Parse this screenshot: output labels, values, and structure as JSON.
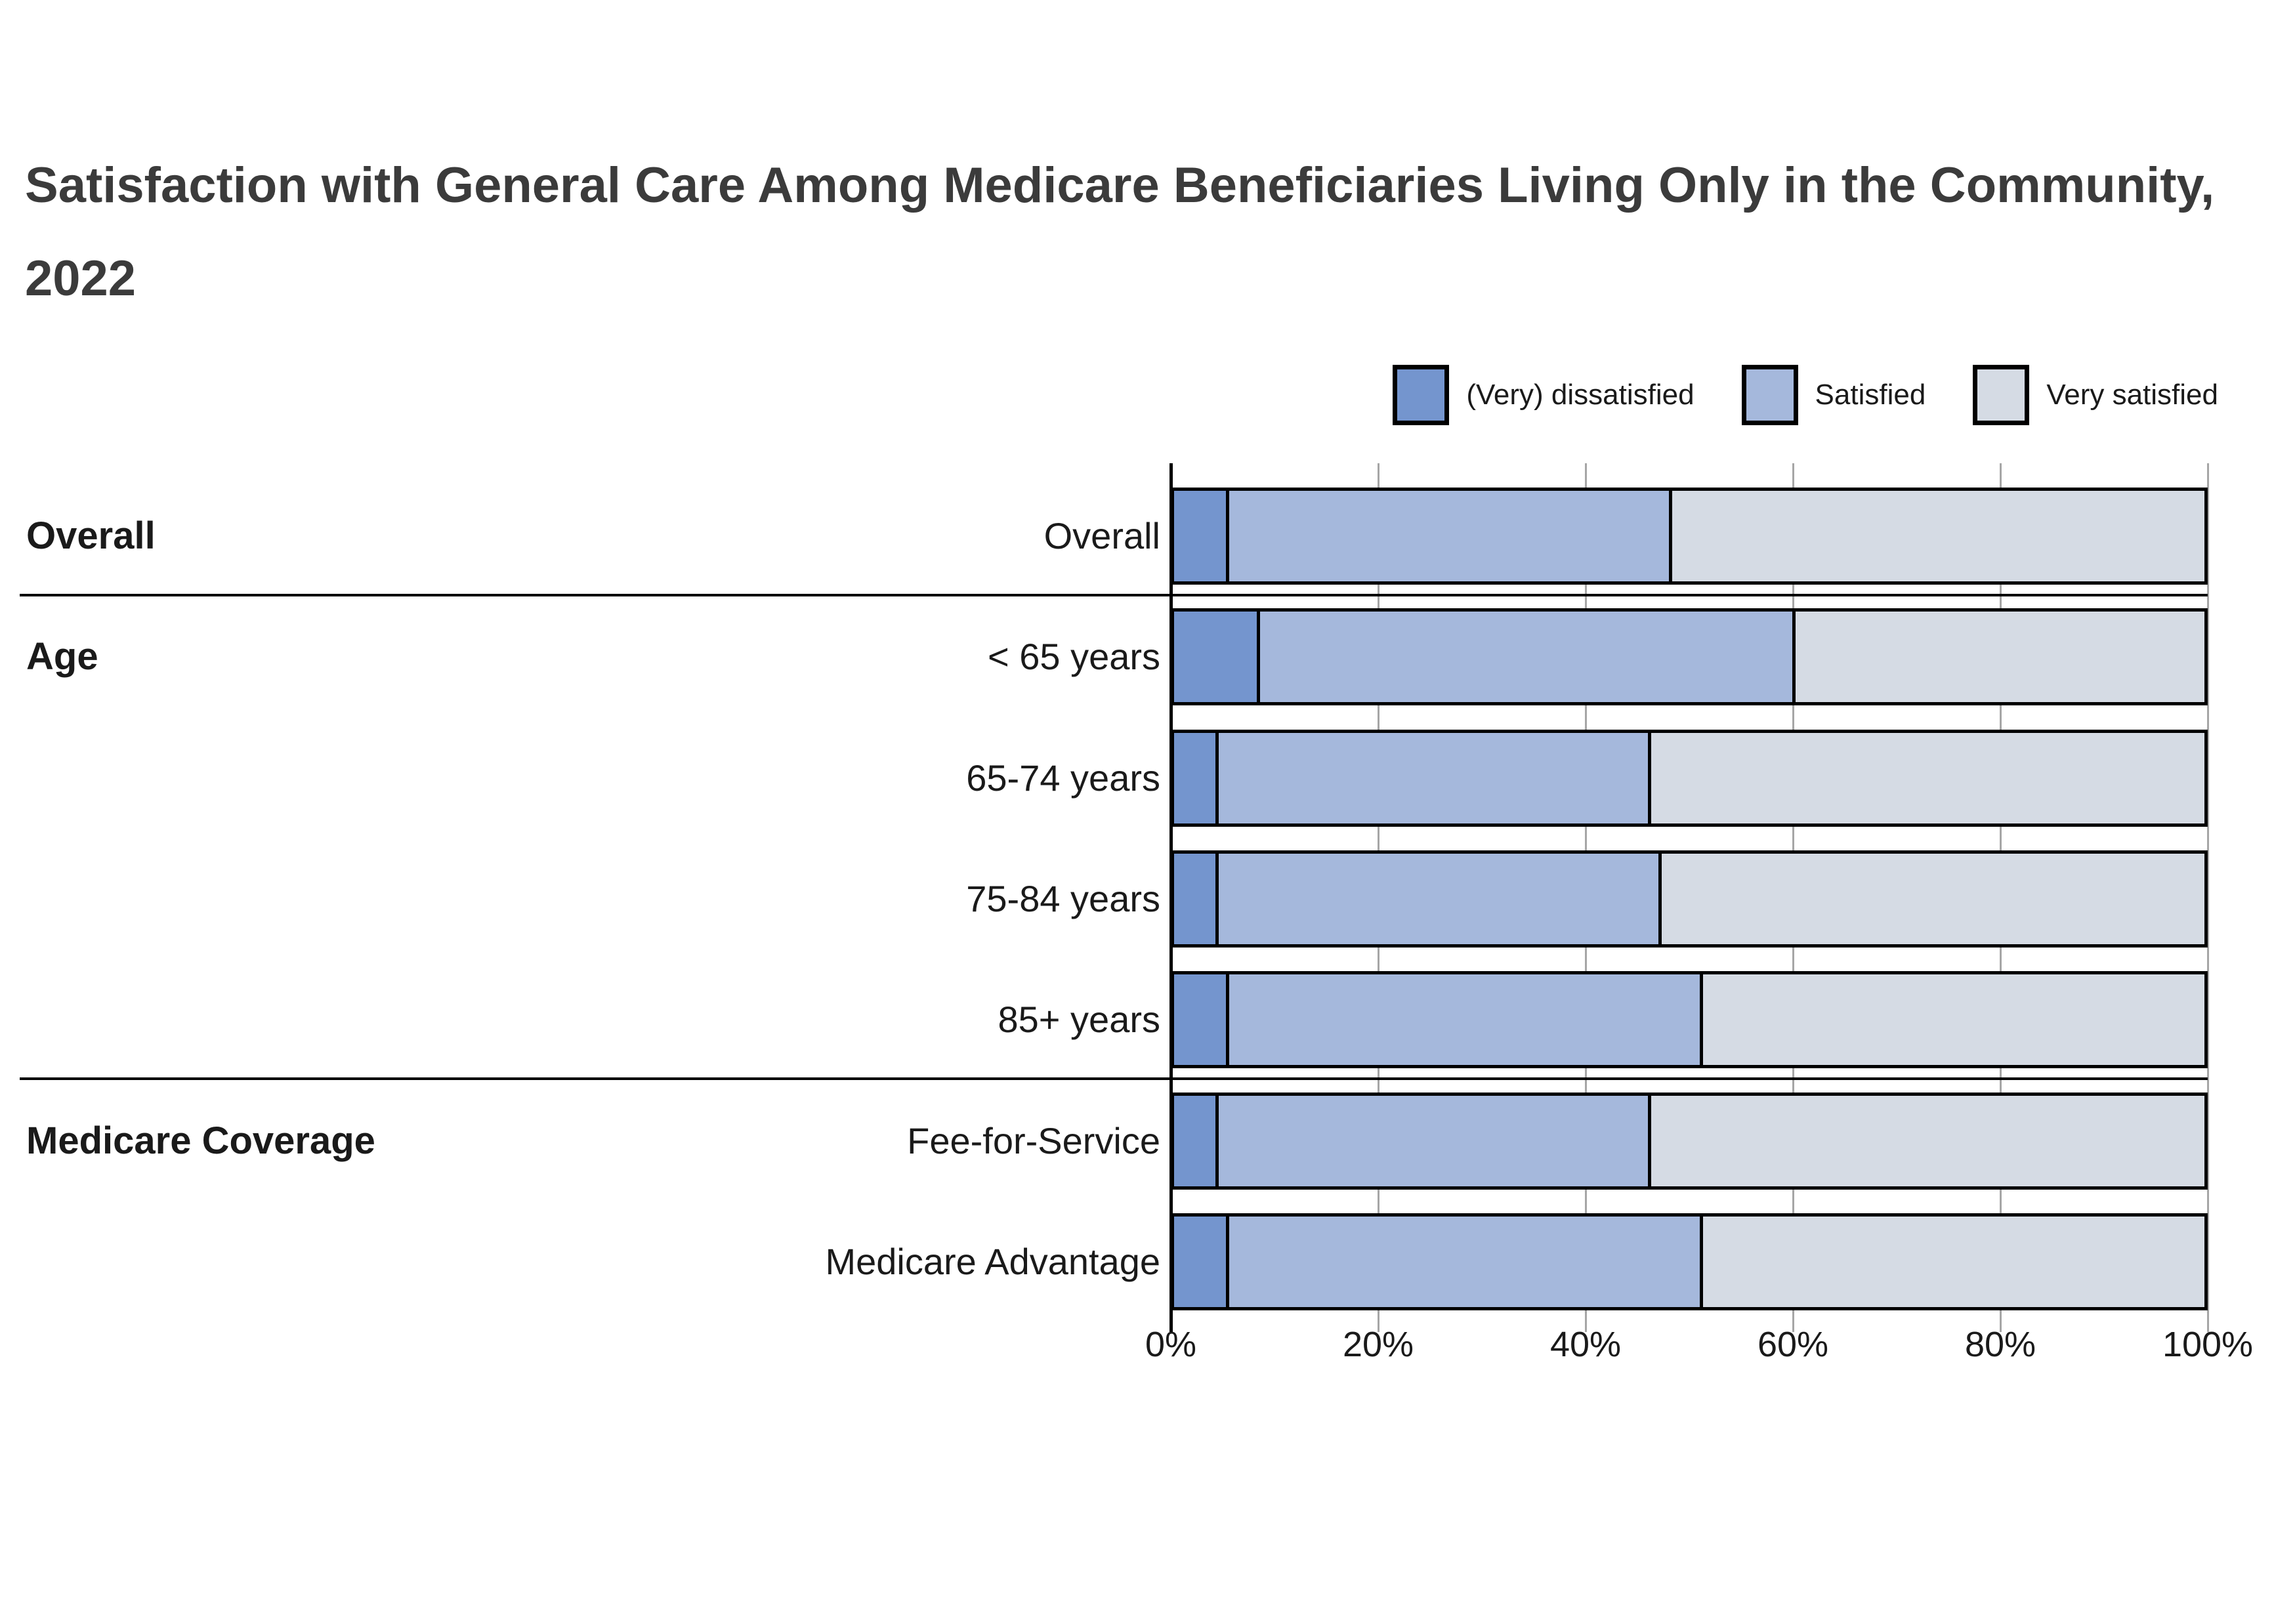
{
  "title": "Satisfaction with General Care Among Medicare Beneficiaries Living Only in the Community, 2022",
  "chart_data": {
    "type": "bar",
    "orientation": "horizontal-stacked",
    "categories": [
      "Overall",
      "< 65 years",
      "65-74 years",
      "75-84 years",
      "85+ years",
      "Fee-for-Service",
      "Medicare Advantage"
    ],
    "groups": [
      {
        "label": "Overall",
        "first_row": 0,
        "last_row": 0
      },
      {
        "label": "Age",
        "first_row": 1,
        "last_row": 4
      },
      {
        "label": "Medicare Coverage",
        "first_row": 5,
        "last_row": 6
      }
    ],
    "series": [
      {
        "name": "(Very) dissatisfied",
        "color": "#7495CE",
        "values": [
          5,
          8,
          4,
          4,
          5,
          4,
          5
        ]
      },
      {
        "name": "Satisfied",
        "color": "#A5B8DC",
        "values": [
          43,
          52,
          42,
          43,
          46,
          42,
          46
        ]
      },
      {
        "name": "Very satisfied",
        "color": "#D5DBE4",
        "values": [
          52,
          40,
          54,
          53,
          49,
          54,
          49
        ]
      }
    ],
    "x_ticks": [
      "0%",
      "20%",
      "40%",
      "60%",
      "80%",
      "100%"
    ],
    "xlim": [
      0,
      100
    ],
    "grid": true,
    "legend_position": "top-right",
    "bar_border_color": "#000000",
    "background": "#ffffff"
  }
}
